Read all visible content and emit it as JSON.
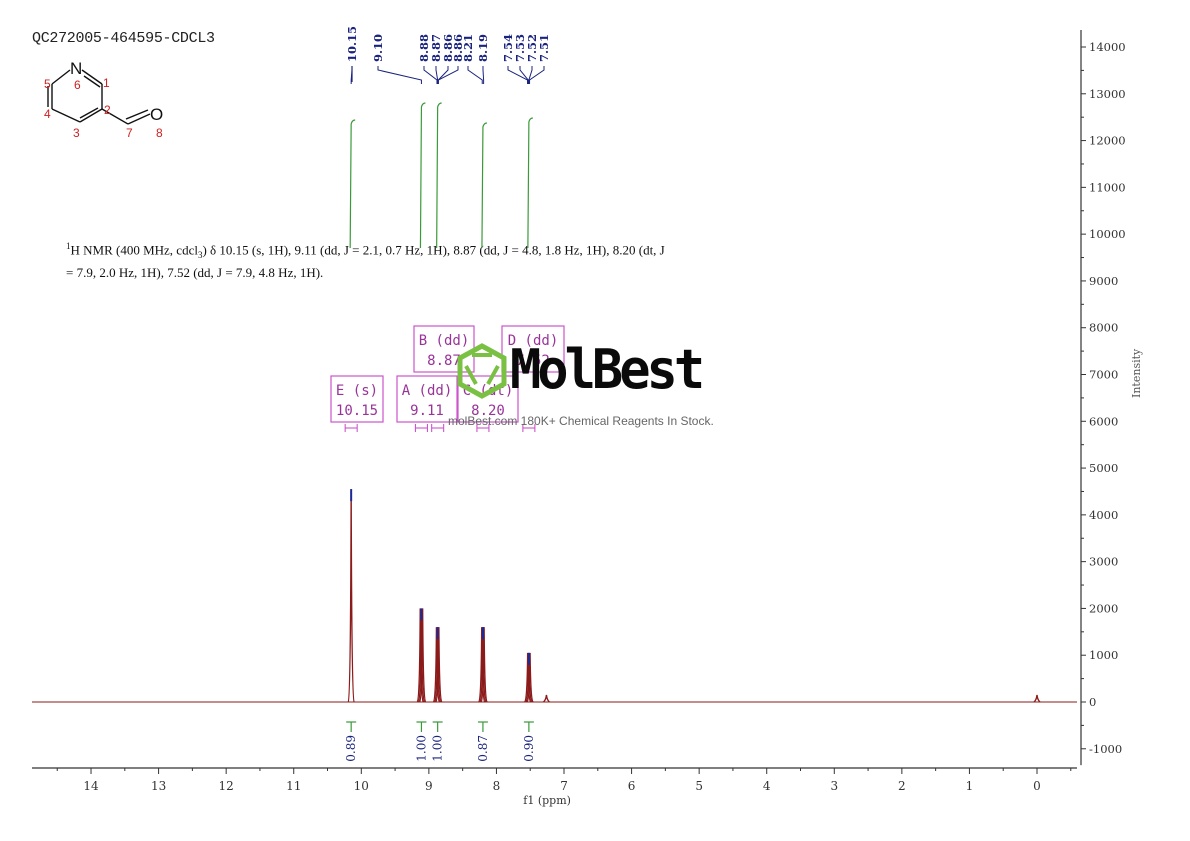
{
  "header": {
    "sample_id": "QC272005-464595-CDCL3"
  },
  "structure": {
    "name": "pyridine-3-carbaldehyde",
    "atoms": [
      {
        "label": "N",
        "index": "6"
      },
      {
        "label": "",
        "index": "1"
      },
      {
        "label": "",
        "index": "2"
      },
      {
        "label": "",
        "index": "3"
      },
      {
        "label": "",
        "index": "4"
      },
      {
        "label": "",
        "index": "5"
      },
      {
        "label": "",
        "index": "7"
      },
      {
        "label": "O",
        "index": "8"
      }
    ]
  },
  "nmr_description": {
    "prefix_sup": "1",
    "part1": "H NMR (400 MHz, cdcl",
    "sub": "3",
    "part2": ") δ 10.15 (s, 1H), 9.11 (dd, J = 2.1, 0.7 Hz, 1H), 8.87 (dd, J = 4.8, 1.8 Hz, 1H), 8.20 (dt, J = 7.9, 2.0 Hz, 1H), 7.52 (dd, J = 7.9, 4.8 Hz, 1H)."
  },
  "peak_labels": [
    "10.15",
    "9.10",
    "8.88",
    "8.87",
    "8.86",
    "8.86",
    "8.21",
    "8.19",
    "7.54",
    "7.53",
    "7.52",
    "7.51"
  ],
  "multiplet_boxes": [
    {
      "id": "E",
      "type": "s",
      "label": "E (s)",
      "shift": "10.15"
    },
    {
      "id": "A",
      "type": "dd",
      "label": "A (dd)",
      "shift": "9.11"
    },
    {
      "id": "B",
      "type": "dd",
      "label": "B (dd)",
      "shift": "8.87"
    },
    {
      "id": "C",
      "type": "dt",
      "label": "C (dt)",
      "shift": "8.20"
    },
    {
      "id": "D",
      "type": "dd",
      "label": "D (dd)",
      "shift": "7.52"
    }
  ],
  "integrals": [
    {
      "shift": 10.15,
      "value": "0.89"
    },
    {
      "shift": 9.11,
      "value": "1.00"
    },
    {
      "shift": 8.87,
      "value": "1.00"
    },
    {
      "shift": 8.2,
      "value": "0.87"
    },
    {
      "shift": 7.52,
      "value": "0.90"
    }
  ],
  "watermark": {
    "brand": "MolBest",
    "tagline": "molBest.com 180K+ Chemical Reagents In Stock."
  },
  "colors": {
    "spectrum": "#8b1a1a",
    "peak_tops": "#1a2a9a",
    "integral": "#3a9a3a",
    "peak_label": "#1a237e",
    "box": "#cc55cc",
    "atom_index": "#cc2222",
    "logo_green": "#7ac143"
  },
  "chart_data": {
    "type": "line",
    "title": "QC272005-464595-CDCL3",
    "xlabel": "f1 (ppm)",
    "ylabel": "Intensity",
    "xlim": [
      14.9,
      -0.6
    ],
    "ylim": [
      -1500,
      14300
    ],
    "x_ticks": [
      14,
      13,
      12,
      11,
      10,
      9,
      8,
      7,
      6,
      5,
      4,
      3,
      2,
      1,
      0
    ],
    "y_ticks": [
      -1000,
      0,
      1000,
      2000,
      3000,
      4000,
      5000,
      6000,
      7000,
      8000,
      9000,
      10000,
      11000,
      12000,
      13000,
      14000
    ],
    "grid": false,
    "peaks": [
      {
        "ppm": 10.15,
        "intensity": 4550,
        "multiplicity": "s",
        "integral": 0.89
      },
      {
        "ppm": 9.11,
        "intensity": 2000,
        "multiplicity": "dd",
        "integral": 1.0
      },
      {
        "ppm": 8.87,
        "intensity": 1600,
        "multiplicity": "dd",
        "integral": 1.0
      },
      {
        "ppm": 8.2,
        "intensity": 1600,
        "multiplicity": "dt",
        "integral": 0.87
      },
      {
        "ppm": 7.52,
        "intensity": 1050,
        "multiplicity": "dd",
        "integral": 0.9
      },
      {
        "ppm": 7.26,
        "intensity": 150,
        "multiplicity": "solvent",
        "integral": null
      },
      {
        "ppm": 0.0,
        "intensity": 150,
        "multiplicity": "TMS",
        "integral": null
      }
    ]
  }
}
